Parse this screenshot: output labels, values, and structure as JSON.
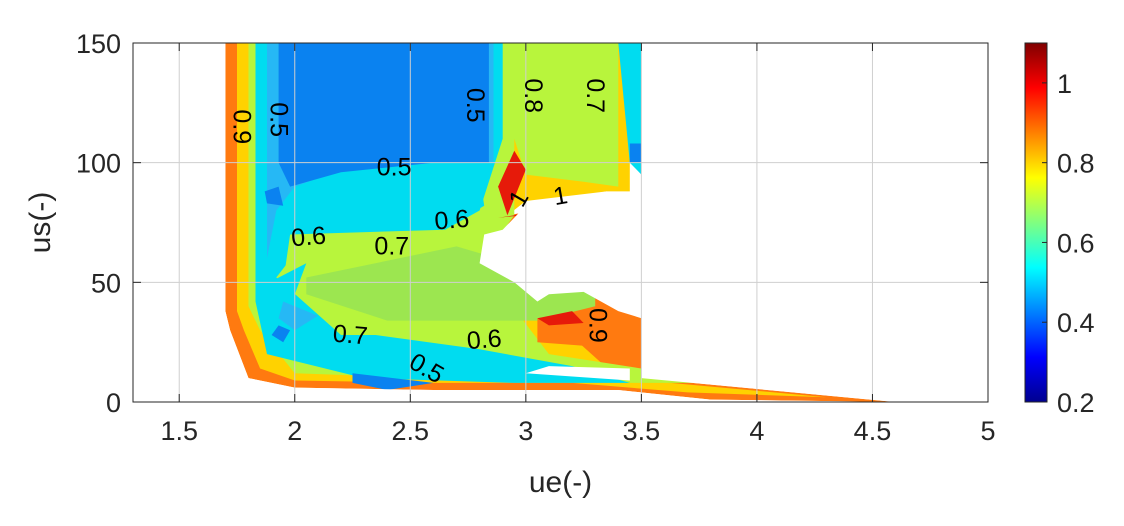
{
  "chart_data": {
    "type": "filled-contour",
    "xlabel": "ue(-)",
    "ylabel": "us(-)",
    "xlim": [
      1.3,
      5
    ],
    "ylim": [
      0,
      150
    ],
    "xticks": [
      1.5,
      2,
      2.5,
      3,
      3.5,
      4,
      4.5,
      5
    ],
    "xtick_labels": [
      "1.5",
      "2",
      "2.5",
      "3",
      "3.5",
      "4",
      "4.5",
      "5"
    ],
    "yticks": [
      0,
      50,
      100,
      150
    ],
    "ytick_labels": [
      "0",
      "50",
      "100",
      "150"
    ],
    "grid": true,
    "colormap": "jet",
    "colorbar": {
      "range": [
        0.2,
        1.1
      ],
      "ticks": [
        0.2,
        0.4,
        0.6,
        0.8,
        1
      ],
      "tick_labels": [
        "0.2",
        "0.4",
        "0.6",
        "0.8",
        "1"
      ],
      "stops": [
        "#00008f",
        "#0000ff",
        "#0080ff",
        "#00ffff",
        "#80ff80",
        "#ffff00",
        "#ff8000",
        "#ff0000",
        "#800000"
      ]
    },
    "level_colors": {
      "0.5": "#0a82f0",
      "0.55": "#26b8f5",
      "0.6": "#00dcf0",
      "0.7": "#b8f53c",
      "0.75": "#9ce650",
      "0.8": "#ffd200",
      "0.9": "#ff7a10",
      "1": "#e61a0a"
    },
    "regions": [
      {
        "level": "0.9",
        "points": [
          [
            1.7,
            38
          ],
          [
            1.7,
            150
          ],
          [
            2.85,
            150
          ],
          [
            2.85,
            77
          ],
          [
            3.05,
            80
          ],
          [
            3.5,
            82
          ],
          [
            3.5,
            10
          ],
          [
            4.6,
            0
          ],
          [
            3.8,
            1
          ],
          [
            3.4,
            5
          ],
          [
            2.6,
            5
          ],
          [
            2.0,
            6
          ],
          [
            1.8,
            10
          ],
          [
            1.72,
            30
          ]
        ]
      },
      {
        "level": "0.8",
        "points": [
          [
            1.75,
            38
          ],
          [
            1.75,
            150
          ],
          [
            3.45,
            150
          ],
          [
            3.45,
            84
          ],
          [
            3.35,
            88
          ],
          [
            3.0,
            84
          ],
          [
            2.88,
            75
          ],
          [
            2.8,
            62
          ],
          [
            3.4,
            10
          ],
          [
            4.3,
            2
          ],
          [
            3.7,
            4
          ],
          [
            3.2,
            8
          ],
          [
            2.6,
            8
          ],
          [
            2.0,
            9
          ],
          [
            1.85,
            14
          ],
          [
            1.78,
            30
          ]
        ]
      },
      {
        "level": "0.7",
        "points": [
          [
            1.8,
            40
          ],
          [
            1.8,
            150
          ],
          [
            3.4,
            150
          ],
          [
            3.4,
            90
          ],
          [
            3.25,
            92
          ],
          [
            3.0,
            95
          ],
          [
            2.95,
            110
          ],
          [
            2.95,
            78
          ],
          [
            2.8,
            58
          ],
          [
            3.1,
            20
          ],
          [
            3.9,
            8
          ],
          [
            3.4,
            8
          ],
          [
            2.6,
            10
          ],
          [
            2.0,
            12
          ],
          [
            1.85,
            30
          ]
        ]
      },
      {
        "level": "0.6",
        "points": [
          [
            1.83,
            42
          ],
          [
            1.83,
            150
          ],
          [
            2.9,
            150
          ],
          [
            2.9,
            110
          ],
          [
            2.8,
            80
          ],
          [
            2.65,
            72
          ],
          [
            1.98,
            70
          ],
          [
            1.95,
            50
          ],
          [
            2.2,
            30
          ],
          [
            2.8,
            22
          ],
          [
            3.2,
            15
          ],
          [
            3.45,
            8
          ],
          [
            2.95,
            8
          ],
          [
            2.3,
            10
          ],
          [
            1.88,
            20
          ]
        ]
      },
      {
        "level": "0.6",
        "points": [
          [
            3.4,
            150
          ],
          [
            3.5,
            150
          ],
          [
            3.5,
            95
          ],
          [
            3.45,
            100
          ]
        ]
      },
      {
        "level": "0.55",
        "points": [
          [
            1.88,
            60
          ],
          [
            1.88,
            150
          ],
          [
            2.86,
            150
          ],
          [
            2.86,
            100
          ],
          [
            2.6,
            100
          ],
          [
            2.2,
            97
          ],
          [
            2.0,
            90
          ],
          [
            1.92,
            80
          ]
        ]
      },
      {
        "level": "0.55",
        "points": [
          [
            1.95,
            42
          ],
          [
            2.1,
            36
          ],
          [
            2.0,
            30
          ],
          [
            1.93,
            35
          ]
        ]
      },
      {
        "level": "0.5",
        "points": [
          [
            1.93,
            150
          ],
          [
            2.84,
            150
          ],
          [
            2.84,
            100
          ],
          [
            2.6,
            100
          ],
          [
            2.2,
            96
          ],
          [
            1.98,
            90
          ],
          [
            1.93,
            100
          ]
        ]
      },
      {
        "level": "0.5",
        "points": [
          [
            1.87,
            88
          ],
          [
            1.93,
            90
          ],
          [
            1.95,
            82
          ],
          [
            1.88,
            83
          ]
        ]
      },
      {
        "level": "0.5",
        "points": [
          [
            1.93,
            32
          ],
          [
            1.98,
            30
          ],
          [
            1.95,
            25
          ],
          [
            1.9,
            28
          ]
        ]
      },
      {
        "level": "0.5",
        "points": [
          [
            2.25,
            12
          ],
          [
            2.6,
            8
          ],
          [
            2.4,
            5
          ],
          [
            2.25,
            8
          ]
        ]
      },
      {
        "level": "0.5",
        "points": [
          [
            3.45,
            100
          ],
          [
            3.5,
            100
          ],
          [
            3.5,
            108
          ],
          [
            3.45,
            108
          ]
        ]
      },
      {
        "level": "0.6",
        "points": [
          [
            2.0,
            90
          ],
          [
            2.65,
            99
          ],
          [
            2.8,
            95
          ],
          [
            2.82,
            82
          ],
          [
            2.75,
            78
          ],
          [
            2.0,
            78
          ]
        ]
      },
      {
        "level": "0.7",
        "points": [
          [
            2.0,
            62
          ],
          [
            2.6,
            64
          ],
          [
            2.78,
            65
          ],
          [
            2.78,
            35
          ],
          [
            2.6,
            28
          ],
          [
            2.2,
            28
          ],
          [
            1.92,
            52
          ]
        ]
      },
      {
        "level": "0.75",
        "points": [
          [
            2.05,
            52
          ],
          [
            2.7,
            65
          ],
          [
            3.3,
            48
          ],
          [
            3.3,
            40
          ],
          [
            3.05,
            34
          ],
          [
            2.4,
            34
          ],
          [
            2.05,
            45
          ]
        ]
      },
      {
        "level": "0.6",
        "points": [
          [
            1.85,
            48
          ],
          [
            2.05,
            58
          ],
          [
            2.0,
            45
          ],
          [
            1.85,
            40
          ]
        ]
      },
      {
        "level": "0.9",
        "points": [
          [
            3.05,
            35
          ],
          [
            3.45,
            40
          ],
          [
            3.45,
            22
          ],
          [
            3.05,
            25
          ]
        ]
      },
      {
        "level": "1",
        "points": [
          [
            2.88,
            77
          ],
          [
            3.2,
            80
          ],
          [
            3.35,
            86
          ],
          [
            3.2,
            85
          ],
          [
            2.95,
            78
          ]
        ]
      },
      {
        "level": "1",
        "points": [
          [
            2.92,
            78
          ],
          [
            3.0,
            97
          ],
          [
            2.95,
            105
          ],
          [
            2.88,
            90
          ]
        ]
      },
      {
        "level": "1",
        "points": [
          [
            3.05,
            35
          ],
          [
            3.2,
            38
          ],
          [
            3.25,
            33
          ],
          [
            3.1,
            32
          ]
        ]
      }
    ],
    "blank_regions": [
      {
        "points": [
          [
            2.9,
            72
          ],
          [
            3.0,
            82
          ],
          [
            3.35,
            88
          ],
          [
            3.5,
            88
          ],
          [
            3.5,
            35
          ],
          [
            3.4,
            38
          ],
          [
            3.25,
            46
          ],
          [
            3.1,
            45
          ],
          [
            3.05,
            42
          ],
          [
            2.95,
            50
          ],
          [
            2.8,
            58
          ],
          [
            2.82,
            70
          ]
        ]
      },
      {
        "points": [
          [
            1.3,
            0
          ],
          [
            1.3,
            150
          ],
          [
            1.7,
            150
          ],
          [
            1.7,
            38
          ],
          [
            1.72,
            30
          ],
          [
            1.8,
            10
          ],
          [
            2.0,
            6
          ],
          [
            2.6,
            5
          ],
          [
            3.4,
            5
          ],
          [
            3.8,
            1
          ],
          [
            4.6,
            0
          ]
        ]
      },
      {
        "points": [
          [
            3.5,
            150
          ],
          [
            5,
            150
          ],
          [
            5,
            0
          ],
          [
            4.6,
            0
          ],
          [
            3.5,
            10
          ]
        ]
      },
      {
        "points": [
          [
            3.0,
            12
          ],
          [
            3.45,
            9
          ],
          [
            3.45,
            14
          ],
          [
            3.1,
            15
          ]
        ]
      }
    ],
    "contour_labels": [
      {
        "text": "0.9",
        "x": 1.77,
        "y": 115,
        "rotation": 90
      },
      {
        "text": "0.5",
        "x": 1.93,
        "y": 118,
        "rotation": 90
      },
      {
        "text": "0.5",
        "x": 2.43,
        "y": 98,
        "rotation": 0
      },
      {
        "text": "0.5",
        "x": 2.78,
        "y": 124,
        "rotation": 90
      },
      {
        "text": "0.8",
        "x": 3.03,
        "y": 128,
        "rotation": 90
      },
      {
        "text": "0.7",
        "x": 3.3,
        "y": 128,
        "rotation": 90
      },
      {
        "text": "0.6",
        "x": 2.06,
        "y": 69,
        "rotation": -5
      },
      {
        "text": "0.6",
        "x": 2.68,
        "y": 76,
        "rotation": -5
      },
      {
        "text": "0.7",
        "x": 2.42,
        "y": 65,
        "rotation": 0
      },
      {
        "text": "1",
        "x": 2.97,
        "y": 85,
        "rotation": -60
      },
      {
        "text": "1",
        "x": 3.15,
        "y": 86,
        "rotation": -10
      },
      {
        "text": "0.7",
        "x": 2.24,
        "y": 28,
        "rotation": 5
      },
      {
        "text": "0.6",
        "x": 2.82,
        "y": 26,
        "rotation": -5
      },
      {
        "text": "0.5",
        "x": 2.57,
        "y": 14,
        "rotation": 30
      },
      {
        "text": "0.9",
        "x": 3.31,
        "y": 32,
        "rotation": 90
      }
    ]
  }
}
